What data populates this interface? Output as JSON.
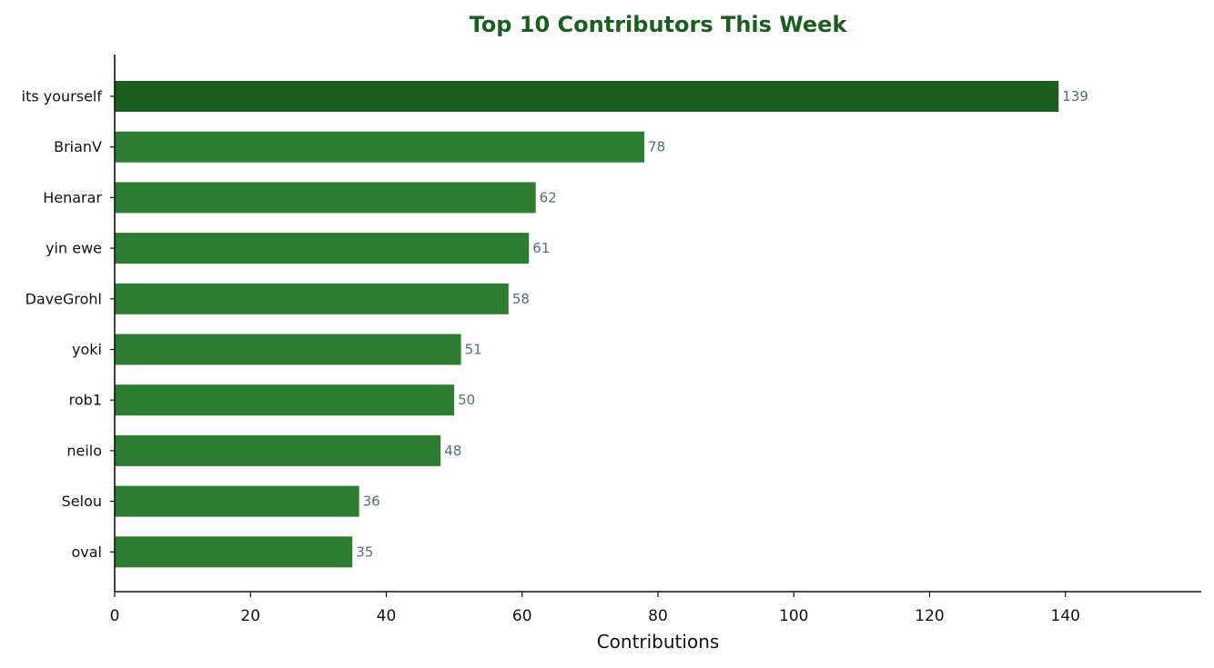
{
  "chart_data": {
    "type": "bar",
    "orientation": "horizontal",
    "title": "Top 10 Contributors This Week",
    "xlabel": "Contributions",
    "ylabel": "",
    "categories": [
      "its yourself",
      "BrianV",
      "Henarar",
      "yin ewe",
      "DaveGrohl",
      "yoki",
      "rob1",
      "neilo",
      "Selou",
      "oval"
    ],
    "values": [
      139,
      78,
      62,
      61,
      58,
      51,
      50,
      48,
      36,
      35
    ],
    "data_labels": [
      "139",
      "78",
      "62",
      "61",
      "58",
      "51",
      "50",
      "48",
      "36",
      "35"
    ],
    "xlim": [
      0,
      160
    ],
    "xticks": [
      0,
      20,
      40,
      60,
      80,
      100,
      120,
      140
    ],
    "xtick_labels": [
      "0",
      "20",
      "40",
      "60",
      "80",
      "100",
      "120",
      "140"
    ],
    "grid": false,
    "legend": "none",
    "colors": {
      "top_bar": "#1b5e20",
      "bars": "#2e7d32",
      "title": "#1b5e20",
      "value_labels": "#546e7a",
      "axis": "#111111"
    }
  }
}
